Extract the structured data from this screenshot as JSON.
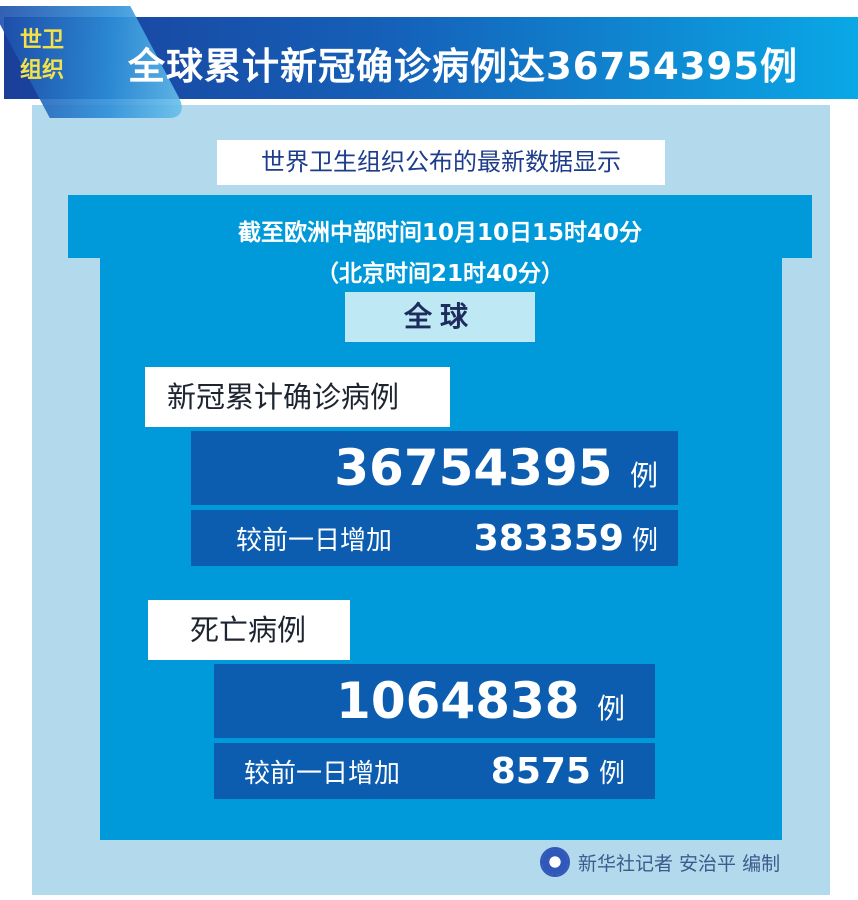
{
  "badge": {
    "line1": "世卫",
    "line2": "组织"
  },
  "title": "全球累计新冠确诊病例达36754395例",
  "subtitle": "世界卫生组织公布的最新数据显示",
  "time": {
    "line1": "截至欧洲中部时间10月10日15时40分",
    "line2": "（北京时间21时40分）"
  },
  "region": "全球",
  "confirmed": {
    "label": "新冠累计确诊病例",
    "total": "36754395",
    "unit": "例",
    "increase_label": "较前一日增加",
    "increase": "383359"
  },
  "deaths": {
    "label": "死亡病例",
    "total": "1064838",
    "unit": "例",
    "increase_label": "较前一日增加",
    "increase": "8575"
  },
  "credit": "新华社记者 安治平 编制",
  "colors": {
    "banner": "#1560b8",
    "panel": "#0099da",
    "block": "#0c5db0",
    "background": "#b2daec",
    "badge_text": "#f5e24a"
  }
}
